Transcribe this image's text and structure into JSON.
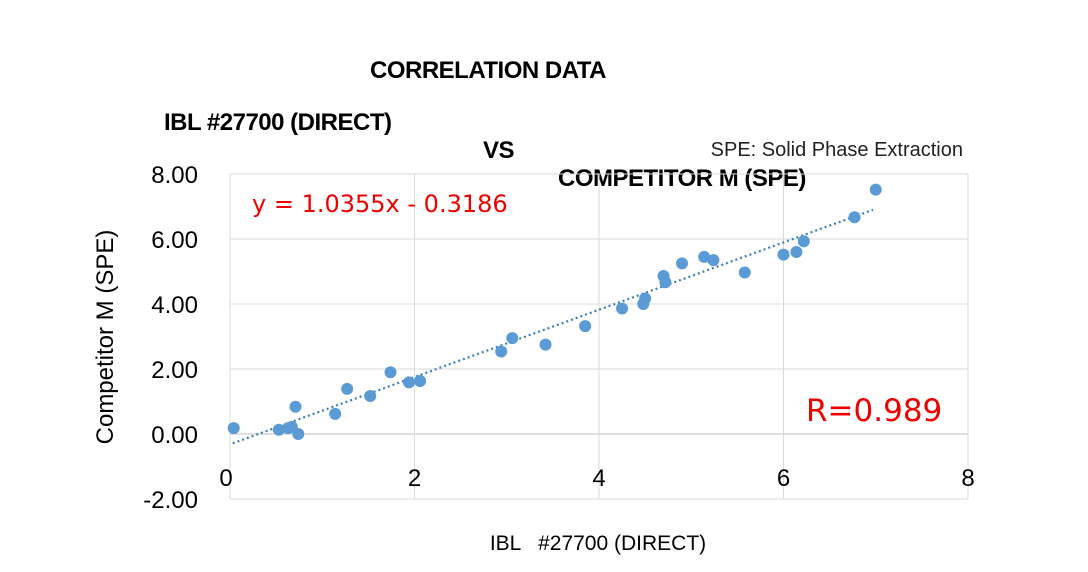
{
  "titles": {
    "line1": "CORRELATION DATA",
    "line2_left": "IBL #27700 (DIRECT)",
    "line2_mid": "VS",
    "line2_right": "COMPETITOR M (SPE)"
  },
  "chart_data": {
    "type": "scatter",
    "note": "SPE: Solid Phase Extraction",
    "xlabel": "IBL   #27700 (DIRECT)",
    "ylabel": "Competitor M (SPE)",
    "xlim": [
      0,
      8
    ],
    "ylim": [
      -2,
      8
    ],
    "x_ticks": [
      0,
      2,
      4,
      6,
      8
    ],
    "y_ticks": [
      -2.0,
      0.0,
      2.0,
      4.0,
      6.0,
      8.0
    ],
    "y_tick_labels": [
      "-2.00",
      "0.00",
      "2.00",
      "4.00",
      "6.00",
      "8.00"
    ],
    "x_tick_labels": [
      "0",
      "2",
      "4",
      "6",
      "8"
    ],
    "grid": true,
    "equation": "y = 1.0355x - 0.3186",
    "r_value": "R=0.989",
    "trendline": {
      "slope": 1.0355,
      "intercept": -0.3186,
      "x_range": [
        0.03,
        6.97
      ]
    },
    "point_color": "#5b9bd5",
    "trend_color": "#3a7dc0",
    "label_color": "#ee0000",
    "points": [
      {
        "x": 0.04,
        "y": 0.18
      },
      {
        "x": 0.53,
        "y": 0.13
      },
      {
        "x": 0.63,
        "y": 0.18
      },
      {
        "x": 0.67,
        "y": 0.22
      },
      {
        "x": 0.71,
        "y": 0.84
      },
      {
        "x": 0.74,
        "y": 0.0
      },
      {
        "x": 1.14,
        "y": 0.62
      },
      {
        "x": 1.27,
        "y": 1.39
      },
      {
        "x": 1.52,
        "y": 1.17
      },
      {
        "x": 1.74,
        "y": 1.9
      },
      {
        "x": 1.94,
        "y": 1.59
      },
      {
        "x": 2.06,
        "y": 1.63
      },
      {
        "x": 2.94,
        "y": 2.54
      },
      {
        "x": 3.06,
        "y": 2.95
      },
      {
        "x": 3.42,
        "y": 2.75
      },
      {
        "x": 3.85,
        "y": 3.32
      },
      {
        "x": 4.25,
        "y": 3.86
      },
      {
        "x": 4.48,
        "y": 4.0
      },
      {
        "x": 4.5,
        "y": 4.17
      },
      {
        "x": 4.7,
        "y": 4.86
      },
      {
        "x": 4.72,
        "y": 4.67
      },
      {
        "x": 4.9,
        "y": 5.25
      },
      {
        "x": 5.14,
        "y": 5.45
      },
      {
        "x": 5.24,
        "y": 5.35
      },
      {
        "x": 5.58,
        "y": 4.97
      },
      {
        "x": 6.0,
        "y": 5.52
      },
      {
        "x": 6.14,
        "y": 5.6
      },
      {
        "x": 6.22,
        "y": 5.93
      },
      {
        "x": 6.77,
        "y": 6.67
      },
      {
        "x": 7.0,
        "y": 7.52
      }
    ]
  }
}
